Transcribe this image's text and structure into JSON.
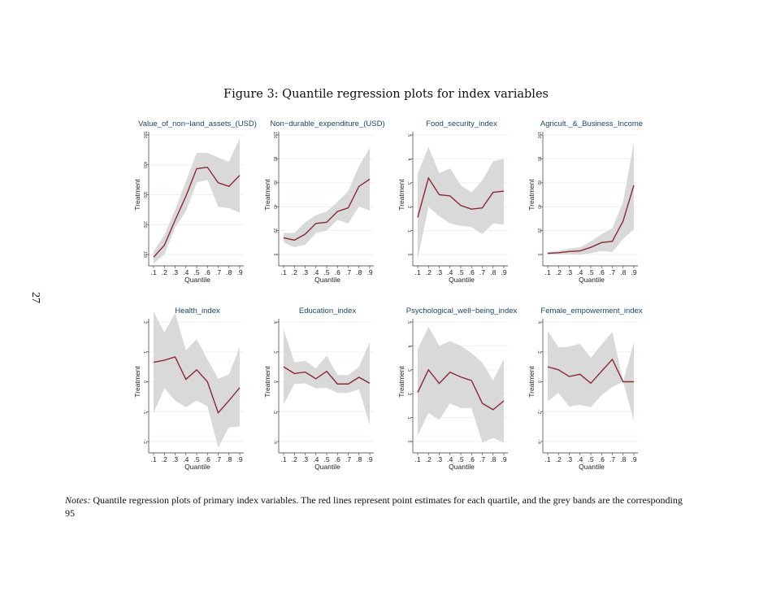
{
  "figure_title": "Figure 3: Quantile regression plots for index variables",
  "page_number": "27",
  "notes": {
    "label": "Notes:",
    "text": "Quantile regression plots of primary index variables. The red lines represent point estimates for each quartile, and the grey bands are the corresponding",
    "continuation": "95"
  },
  "colors": {
    "line": "#8b2a35",
    "band": "#d9d9d9",
    "title": "#1a476f",
    "grid": "#eaf2f3"
  },
  "chart_data": [
    {
      "type": "line",
      "title": "Value_of_non−land_assets_(USD)",
      "xlabel": "Quantile",
      "ylabel": "Treatment",
      "x": [
        ".1",
        ".2",
        ".3",
        ".4",
        ".5",
        ".6",
        ".7",
        ".8",
        ".9"
      ],
      "yticks": [
        "100",
        "200",
        "300",
        "400",
        "500"
      ],
      "ylim": [
        100,
        500
      ],
      "estimate": [
        91,
        131,
        215,
        295,
        387,
        392,
        340,
        328,
        365
      ],
      "lower": [
        70,
        100,
        190,
        245,
        340,
        350,
        260,
        255,
        240
      ],
      "upper": [
        110,
        165,
        250,
        345,
        440,
        440,
        425,
        410,
        490
      ]
    },
    {
      "type": "line",
      "title": "Non−durable_expenditure_(USD)",
      "xlabel": "Quantile",
      "ylabel": "Treatment",
      "x": [
        ".1",
        ".2",
        ".3",
        ".4",
        ".5",
        ".6",
        ".7",
        ".8",
        ".9"
      ],
      "yticks": [
        "0",
        "20",
        "40",
        "60",
        "80",
        "100"
      ],
      "ylim": [
        0,
        100
      ],
      "estimate": [
        14,
        12,
        17,
        26,
        27,
        36,
        39,
        57,
        63
      ],
      "lower": [
        10,
        6,
        8,
        18,
        20,
        29,
        26,
        40,
        37
      ],
      "upper": [
        18,
        18,
        27,
        33,
        36,
        44,
        53,
        74,
        89
      ]
    },
    {
      "type": "line",
      "title": "Food_security_index",
      "xlabel": "Quantile",
      "ylabel": "Treatment",
      "x": [
        ".1",
        ".2",
        ".3",
        ".4",
        ".5",
        ".6",
        ".7",
        ".8",
        ".9"
      ],
      "yticks": [
        "0",
        ".1",
        ".2",
        ".3",
        ".4",
        ".5"
      ],
      "ylim": [
        0,
        0.5
      ],
      "estimate": [
        0.155,
        0.32,
        0.25,
        0.245,
        0.205,
        0.19,
        0.195,
        0.26,
        0.265
      ],
      "lower": [
        -0.02,
        0.2,
        0.16,
        0.13,
        0.12,
        0.115,
        0.085,
        0.13,
        0.125
      ],
      "upper": [
        0.34,
        0.45,
        0.34,
        0.36,
        0.29,
        0.26,
        0.31,
        0.39,
        0.4
      ]
    },
    {
      "type": "line",
      "title": "Agricult._&_Business_Income",
      "xlabel": "Quantile",
      "ylabel": "Treatment",
      "x": [
        ".1",
        ".2",
        ".3",
        ".4",
        ".5",
        ".6",
        ".7",
        ".8",
        ".9"
      ],
      "yticks": [
        "0",
        "20",
        "40",
        "60",
        "80",
        "100"
      ],
      "ylim": [
        0,
        100
      ],
      "estimate": [
        1,
        1.5,
        2.5,
        3,
        6,
        10,
        11,
        28,
        58
      ],
      "lower": [
        0,
        0,
        0,
        0,
        1,
        3,
        2,
        13,
        21
      ],
      "upper": [
        2,
        3,
        5,
        6,
        11,
        17,
        22,
        44,
        94
      ]
    },
    {
      "type": "line",
      "title": "Health_index",
      "xlabel": "Quantile",
      "ylabel": "Treatment",
      "x": [
        ".1",
        ".2",
        ".3",
        ".4",
        ".5",
        ".6",
        ".7",
        ".8",
        ".9"
      ],
      "yticks": [
        "-.2",
        "-.1",
        "0",
        ".1",
        ".2"
      ],
      "ylim": [
        -0.2,
        0.2
      ],
      "estimate": [
        0.065,
        0.072,
        0.083,
        0.008,
        0.04,
        0,
        -0.104,
        -0.063,
        -0.02
      ],
      "lower": [
        -0.105,
        -0.022,
        -0.063,
        -0.085,
        -0.063,
        -0.082,
        -0.22,
        -0.152,
        -0.15
      ],
      "upper": [
        0.235,
        0.165,
        0.23,
        0.105,
        0.143,
        0.075,
        0.01,
        0.025,
        0.115
      ]
    },
    {
      "type": "line",
      "title": "Education_index",
      "xlabel": "Quantile",
      "ylabel": "Treatment",
      "x": [
        ".1",
        ".2",
        ".3",
        ".4",
        ".5",
        ".6",
        ".7",
        ".8",
        ".9"
      ],
      "yticks": [
        "-.4",
        "-.2",
        "0",
        ".2",
        ".4"
      ],
      "ylim": [
        -0.4,
        0.4
      ],
      "estimate": [
        0.1,
        0.055,
        0.065,
        0.02,
        0.07,
        -0.015,
        -0.015,
        0.03,
        -0.01
      ],
      "lower": [
        -0.15,
        -0.015,
        -0.01,
        -0.045,
        -0.04,
        -0.075,
        -0.075,
        -0.05,
        -0.29
      ],
      "upper": [
        0.35,
        0.13,
        0.14,
        0.09,
        0.175,
        0.045,
        0.045,
        0.1,
        0.265
      ]
    },
    {
      "type": "line",
      "title": "Psychological_well−being_index",
      "xlabel": "Quantile",
      "ylabel": "Treatment",
      "x": [
        ".1",
        ".2",
        ".3",
        ".4",
        ".5",
        ".6",
        ".7",
        ".8",
        ".9"
      ],
      "yticks": [
        "0",
        ".1",
        ".2",
        ".3",
        ".4",
        ".5"
      ],
      "ylim": [
        0,
        0.5
      ],
      "estimate": [
        0.205,
        0.3,
        0.243,
        0.29,
        0.27,
        0.255,
        0.16,
        0.133,
        0.17
      ],
      "lower": [
        0.025,
        0.12,
        0.09,
        0.16,
        0.14,
        0.14,
        -0.005,
        0.015,
        -0.005
      ],
      "upper": [
        0.385,
        0.48,
        0.4,
        0.42,
        0.4,
        0.37,
        0.33,
        0.255,
        0.345
      ]
    },
    {
      "type": "line",
      "title": "Female_empowerment_index",
      "xlabel": "Quantile",
      "ylabel": "Treatment",
      "x": [
        ".1",
        ".2",
        ".3",
        ".4",
        ".5",
        ".6",
        ".7",
        ".8",
        ".9"
      ],
      "yticks": [
        "-.4",
        "-.2",
        "0",
        ".2",
        ".4"
      ],
      "ylim": [
        -0.4,
        0.4
      ],
      "estimate": [
        0.1,
        0.08,
        0.035,
        0.05,
        -0.01,
        0.07,
        0.15,
        0,
        0
      ],
      "lower": [
        -0.13,
        -0.075,
        -0.165,
        -0.155,
        -0.17,
        -0.09,
        -0.035,
        0,
        -0.26
      ],
      "upper": [
        0.34,
        0.23,
        0.235,
        0.255,
        0.16,
        0.25,
        0.335,
        0,
        0.265
      ]
    }
  ]
}
